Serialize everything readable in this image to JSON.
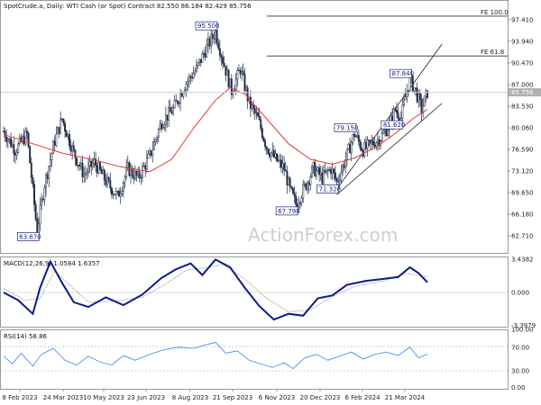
{
  "header": {
    "main": "SpotCrude.a, Daily:  WTI Cash (or Spot) Contract  82.550 86.184 82.429 85.756",
    "macd": "MACD(12,26,9) 1.0584 1.6357",
    "rsi": "RSI(14) 58.86"
  },
  "watermark": "ActionForex.com",
  "colors": {
    "candle": "#1f2a44",
    "ma": "#e53935",
    "macd": "#0d1b8c",
    "signal": "#9e9e9e",
    "rsi": "#3b82f6",
    "channel": "#222222",
    "level": "#333333",
    "current_price_bg": "#b0b0b0"
  },
  "price_axis": {
    "ticks": [
      "97.410",
      "93.940",
      "90.470",
      "87.000",
      "83.530",
      "80.060",
      "76.590",
      "73.120",
      "69.650",
      "66.180",
      "62.710"
    ],
    "current_price": "85.756"
  },
  "levels": [
    {
      "label": "FE 100.0",
      "value": 98.0
    },
    {
      "label": "FE 61.8",
      "value": 91.6
    }
  ],
  "annotations": [
    {
      "label": "95.500",
      "date_idx": 145,
      "value": 95.5
    },
    {
      "label": "63.670",
      "date_idx": 23,
      "value": 63.67
    },
    {
      "label": "67.790",
      "date_idx": 200,
      "value": 67.79
    },
    {
      "label": "79.150",
      "date_idx": 240,
      "value": 79.15
    },
    {
      "label": "71.320",
      "date_idx": 228,
      "value": 71.32
    },
    {
      "label": "87.840",
      "date_idx": 278,
      "value": 87.84
    },
    {
      "label": "81.620",
      "date_idx": 272,
      "value": 81.62
    }
  ],
  "macd_axis": {
    "ticks": [
      "3.4382",
      "0.000",
      "-3.3979"
    ]
  },
  "rsi_axis": {
    "ticks": [
      "100.00",
      "70.00",
      "30.00",
      "0.00"
    ]
  },
  "time_axis": {
    "labels": [
      "8 Feb 2023",
      "24 Mar 2023",
      "10 May 2023",
      "23 Jun 2023",
      "8 Aug 2023",
      "21 Sep 2023",
      "6 Nov 2023",
      "20 Dec 2023",
      "6 Feb 2024",
      "21 Mar 2024"
    ]
  },
  "chart_data": {
    "type": "candlestick",
    "series_price_path": [
      [
        0,
        79.5
      ],
      [
        8,
        76.5
      ],
      [
        16,
        79.0
      ],
      [
        22,
        65.5
      ],
      [
        23,
        63.67
      ],
      [
        28,
        71.0
      ],
      [
        35,
        78.0
      ],
      [
        40,
        81.5
      ],
      [
        48,
        76.0
      ],
      [
        55,
        72.5
      ],
      [
        62,
        74.5
      ],
      [
        70,
        71.5
      ],
      [
        78,
        69.0
      ],
      [
        85,
        73.5
      ],
      [
        92,
        72.0
      ],
      [
        100,
        75.5
      ],
      [
        108,
        81.0
      ],
      [
        116,
        83.0
      ],
      [
        124,
        87.0
      ],
      [
        132,
        89.5
      ],
      [
        138,
        92.5
      ],
      [
        145,
        95.5
      ],
      [
        150,
        91.0
      ],
      [
        156,
        86.0
      ],
      [
        162,
        89.5
      ],
      [
        168,
        84.0
      ],
      [
        174,
        81.5
      ],
      [
        180,
        77.0
      ],
      [
        186,
        75.0
      ],
      [
        192,
        73.5
      ],
      [
        196,
        70.0
      ],
      [
        200,
        67.79
      ],
      [
        206,
        70.5
      ],
      [
        212,
        73.5
      ],
      [
        218,
        72.0
      ],
      [
        224,
        73.5
      ],
      [
        228,
        71.32
      ],
      [
        234,
        75.0
      ],
      [
        240,
        79.15
      ],
      [
        246,
        76.5
      ],
      [
        252,
        77.5
      ],
      [
        258,
        78.5
      ],
      [
        264,
        80.5
      ],
      [
        268,
        83.0
      ],
      [
        272,
        81.62
      ],
      [
        275,
        85.0
      ],
      [
        278,
        87.84
      ],
      [
        282,
        86.0
      ],
      [
        286,
        83.0
      ],
      [
        290,
        85.756
      ]
    ],
    "ma_path": [
      [
        0,
        79.0
      ],
      [
        20,
        77.5
      ],
      [
        40,
        76.0
      ],
      [
        60,
        75.0
      ],
      [
        80,
        73.8
      ],
      [
        100,
        73.0
      ],
      [
        115,
        75.0
      ],
      [
        130,
        80.0
      ],
      [
        145,
        84.5
      ],
      [
        155,
        86.5
      ],
      [
        165,
        85.5
      ],
      [
        180,
        81.5
      ],
      [
        195,
        77.5
      ],
      [
        210,
        75.0
      ],
      [
        225,
        74.2
      ],
      [
        240,
        75.2
      ],
      [
        255,
        77.0
      ],
      [
        270,
        79.5
      ],
      [
        280,
        81.5
      ],
      [
        290,
        83.0
      ]
    ],
    "macd_path": [
      [
        0,
        0.0
      ],
      [
        10,
        -0.8
      ],
      [
        20,
        -2.2
      ],
      [
        25,
        0.5
      ],
      [
        32,
        3.2
      ],
      [
        40,
        1.0
      ],
      [
        48,
        -1.0
      ],
      [
        58,
        -1.5
      ],
      [
        70,
        -0.5
      ],
      [
        82,
        -1.3
      ],
      [
        95,
        -0.2
      ],
      [
        108,
        1.5
      ],
      [
        118,
        2.4
      ],
      [
        128,
        3.0
      ],
      [
        136,
        1.8
      ],
      [
        145,
        3.4
      ],
      [
        155,
        2.6
      ],
      [
        165,
        0.5
      ],
      [
        175,
        -1.4
      ],
      [
        185,
        -2.8
      ],
      [
        195,
        -2.2
      ],
      [
        205,
        -2.4
      ],
      [
        215,
        -0.6
      ],
      [
        225,
        -0.3
      ],
      [
        235,
        0.8
      ],
      [
        248,
        1.2
      ],
      [
        260,
        1.4
      ],
      [
        270,
        1.6
      ],
      [
        278,
        2.6
      ],
      [
        284,
        2.0
      ],
      [
        290,
        1.05
      ]
    ],
    "signal_path": [
      [
        0,
        0.4
      ],
      [
        15,
        -0.8
      ],
      [
        25,
        -0.6
      ],
      [
        35,
        2.2
      ],
      [
        45,
        0.8
      ],
      [
        58,
        -1.0
      ],
      [
        75,
        -0.9
      ],
      [
        95,
        -0.5
      ],
      [
        110,
        0.8
      ],
      [
        125,
        2.3
      ],
      [
        140,
        2.6
      ],
      [
        150,
        2.9
      ],
      [
        165,
        1.4
      ],
      [
        180,
        -0.6
      ],
      [
        195,
        -2.0
      ],
      [
        210,
        -1.8
      ],
      [
        225,
        -0.4
      ],
      [
        240,
        0.6
      ],
      [
        260,
        1.2
      ],
      [
        275,
        2.0
      ],
      [
        290,
        1.64
      ]
    ],
    "rsi_path": [
      [
        0,
        55
      ],
      [
        6,
        42
      ],
      [
        12,
        60
      ],
      [
        20,
        38
      ],
      [
        26,
        58
      ],
      [
        34,
        68
      ],
      [
        42,
        48
      ],
      [
        50,
        40
      ],
      [
        58,
        55
      ],
      [
        66,
        45
      ],
      [
        74,
        40
      ],
      [
        82,
        56
      ],
      [
        90,
        48
      ],
      [
        100,
        58
      ],
      [
        110,
        66
      ],
      [
        120,
        70
      ],
      [
        130,
        68
      ],
      [
        138,
        74
      ],
      [
        145,
        78
      ],
      [
        152,
        60
      ],
      [
        160,
        64
      ],
      [
        168,
        48
      ],
      [
        176,
        42
      ],
      [
        184,
        36
      ],
      [
        192,
        44
      ],
      [
        198,
        34
      ],
      [
        206,
        52
      ],
      [
        214,
        58
      ],
      [
        222,
        48
      ],
      [
        230,
        55
      ],
      [
        238,
        62
      ],
      [
        246,
        50
      ],
      [
        254,
        58
      ],
      [
        262,
        62
      ],
      [
        270,
        56
      ],
      [
        278,
        70
      ],
      [
        284,
        52
      ],
      [
        290,
        58.86
      ]
    ],
    "channel_lines": [
      {
        "from": [
          228,
          70.2
        ],
        "to": [
          300,
          93.5
        ]
      },
      {
        "from": [
          228,
          69.3
        ],
        "to": [
          300,
          84.0
        ]
      }
    ]
  }
}
